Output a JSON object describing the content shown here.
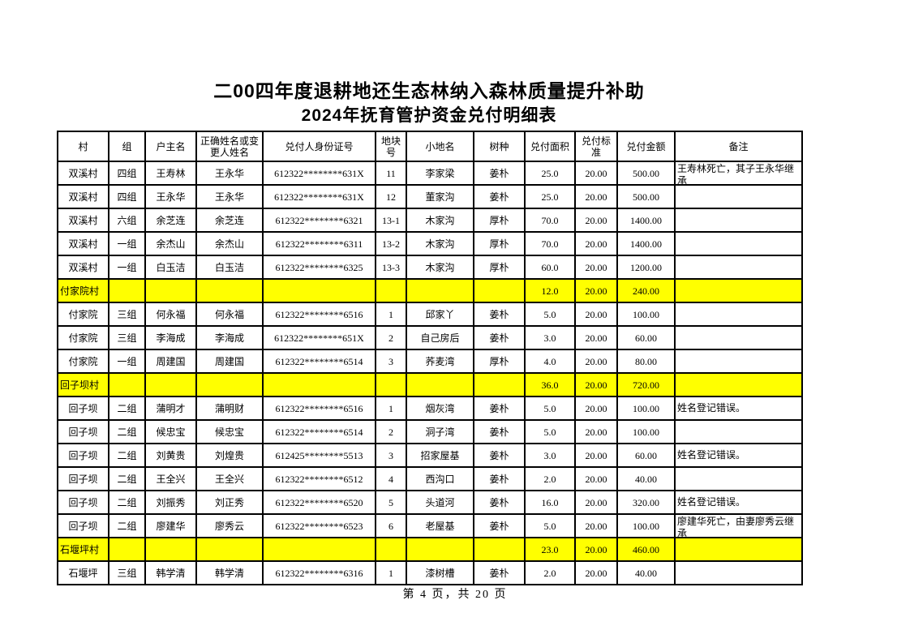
{
  "title": {
    "line1": "二00四年度退耕地还生态林纳入森林质量提升补助",
    "line2": "2024年抚育管护资金兑付明细表"
  },
  "footer": {
    "page_text": "第 4 页，共 20 页"
  },
  "colors": {
    "highlight_yellow": "#FFFF00",
    "border_black": "#000000",
    "text_black": "#000000",
    "page_background": "#FFFFFF"
  },
  "table": {
    "columns": [
      "村",
      "组",
      "户主名",
      "正确姓名或变更人姓名",
      "兑付人身份证号",
      "地块号",
      "小地名",
      "树种",
      "兑付面积",
      "兑付标准",
      "兑付金额",
      "备注"
    ],
    "rows": [
      {
        "type": "data",
        "cells": [
          "双溪村",
          "四组",
          "王寿林",
          "王永华",
          "612322********631X",
          "11",
          "李家梁",
          "姜朴",
          "25.0",
          "20.00",
          "500.00",
          "王寿林死亡，其子王永华继承"
        ]
      },
      {
        "type": "data",
        "cells": [
          "双溪村",
          "四组",
          "王永华",
          "王永华",
          "612322********631X",
          "12",
          "董家沟",
          "姜朴",
          "25.0",
          "20.00",
          "500.00",
          ""
        ]
      },
      {
        "type": "data",
        "cells": [
          "双溪村",
          "六组",
          "余芝连",
          "余芝连",
          "612322********6321",
          "13-1",
          "木家沟",
          "厚朴",
          "70.0",
          "20.00",
          "1400.00",
          ""
        ]
      },
      {
        "type": "data",
        "cells": [
          "双溪村",
          "一组",
          "余杰山",
          "余杰山",
          "612322********6311",
          "13-2",
          "木家沟",
          "厚朴",
          "70.0",
          "20.00",
          "1400.00",
          ""
        ]
      },
      {
        "type": "data",
        "cells": [
          "双溪村",
          "一组",
          "白玉洁",
          "白玉洁",
          "612322********6325",
          "13-3",
          "木家沟",
          "厚朴",
          "60.0",
          "20.00",
          "1200.00",
          ""
        ]
      },
      {
        "type": "summary",
        "cells": [
          "付家院村",
          "",
          "",
          "",
          "",
          "",
          "",
          "",
          "12.0",
          "20.00",
          "240.00",
          ""
        ]
      },
      {
        "type": "data",
        "cells": [
          "付家院",
          "三组",
          "何永福",
          "何永福",
          "612322********6516",
          "1",
          "邱家丫",
          "姜朴",
          "5.0",
          "20.00",
          "100.00",
          ""
        ]
      },
      {
        "type": "data",
        "cells": [
          "付家院",
          "三组",
          "李海成",
          "李海成",
          "612322********651X",
          "2",
          "自己房后",
          "姜朴",
          "3.0",
          "20.00",
          "60.00",
          ""
        ]
      },
      {
        "type": "data",
        "cells": [
          "付家院",
          "一组",
          "周建国",
          "周建国",
          "612322********6514",
          "3",
          "荞麦湾",
          "厚朴",
          "4.0",
          "20.00",
          "80.00",
          ""
        ]
      },
      {
        "type": "summary",
        "cells": [
          "回子坝村",
          "",
          "",
          "",
          "",
          "",
          "",
          "",
          "36.0",
          "20.00",
          "720.00",
          ""
        ]
      },
      {
        "type": "data",
        "cells": [
          "回子坝",
          "二组",
          "蒲明才",
          "蒲明财",
          "612322********6516",
          "1",
          "烟灰湾",
          "姜朴",
          "5.0",
          "20.00",
          "100.00",
          "姓名登记错误。"
        ]
      },
      {
        "type": "data",
        "cells": [
          "回子坝",
          "二组",
          "候忠宝",
          "候忠宝",
          "612322********6514",
          "2",
          "洞子湾",
          "姜朴",
          "5.0",
          "20.00",
          "100.00",
          ""
        ]
      },
      {
        "type": "data",
        "cells": [
          "回子坝",
          "二组",
          "刘黄贵",
          "刘煌贵",
          "612425********5513",
          "3",
          "招家屋基",
          "姜朴",
          "3.0",
          "20.00",
          "60.00",
          "姓名登记错误。"
        ]
      },
      {
        "type": "data",
        "cells": [
          "回子坝",
          "二组",
          "王全兴",
          "王全兴",
          "612322********6512",
          "4",
          "西沟口",
          "姜朴",
          "2.0",
          "20.00",
          "40.00",
          ""
        ]
      },
      {
        "type": "data",
        "cells": [
          "回子坝",
          "二组",
          "刘振秀",
          "刘正秀",
          "612322********6520",
          "5",
          "头道河",
          "姜朴",
          "16.0",
          "20.00",
          "320.00",
          "姓名登记错误。"
        ]
      },
      {
        "type": "data",
        "cells": [
          "回子坝",
          "二组",
          "廖建华",
          "廖秀云",
          "612322********6523",
          "6",
          "老屋基",
          "姜朴",
          "5.0",
          "20.00",
          "100.00",
          "廖建华死亡，由妻廖秀云继承"
        ]
      },
      {
        "type": "summary",
        "cells": [
          "石堰坪村",
          "",
          "",
          "",
          "",
          "",
          "",
          "",
          "23.0",
          "20.00",
          "460.00",
          ""
        ]
      },
      {
        "type": "data",
        "cells": [
          "石堰坪",
          "三组",
          "韩学清",
          "韩学清",
          "612322********6316",
          "1",
          "漆树槽",
          "姜朴",
          "2.0",
          "20.00",
          "40.00",
          ""
        ]
      }
    ]
  }
}
